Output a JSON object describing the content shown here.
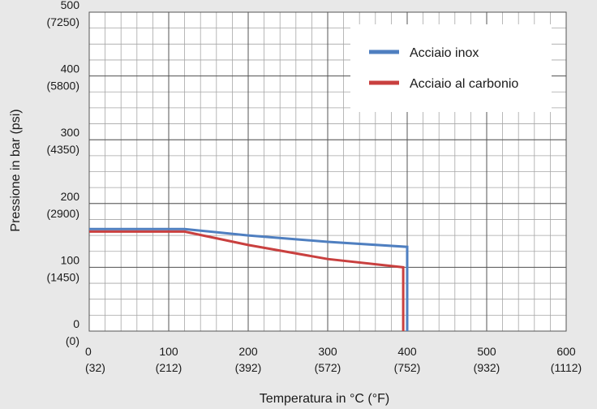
{
  "chart_data": {
    "type": "line",
    "title": "",
    "xlabel": "Temperatura in °C (°F)",
    "ylabel": "Pressione in bar (psi)",
    "xlim": [
      0,
      600
    ],
    "ylim": [
      0,
      500
    ],
    "grid": true,
    "legend_position": "top-right",
    "x_ticks": [
      {
        "value": 0,
        "label": "0",
        "sub": "(32)"
      },
      {
        "value": 100,
        "label": "100",
        "sub": "(212)"
      },
      {
        "value": 200,
        "label": "200",
        "sub": "(392)"
      },
      {
        "value": 300,
        "label": "300",
        "sub": "(572)"
      },
      {
        "value": 400,
        "label": "400",
        "sub": "(752)"
      },
      {
        "value": 500,
        "label": "500",
        "sub": "(932)"
      },
      {
        "value": 600,
        "label": "600",
        "sub": "(1112)"
      }
    ],
    "y_ticks": [
      {
        "value": 0,
        "label": "0",
        "sub": "(0)"
      },
      {
        "value": 100,
        "label": "100",
        "sub": "(1450)"
      },
      {
        "value": 200,
        "label": "200",
        "sub": "(2900)"
      },
      {
        "value": 300,
        "label": "300",
        "sub": "(4350)"
      },
      {
        "value": 400,
        "label": "400",
        "sub": "(5800)"
      },
      {
        "value": 500,
        "label": "500",
        "sub": "(7250)"
      }
    ],
    "series": [
      {
        "name": "Acciaio inox",
        "color": "#4f7fc0",
        "points": [
          [
            0,
            160
          ],
          [
            120,
            160
          ],
          [
            200,
            150
          ],
          [
            300,
            140
          ],
          [
            400,
            132
          ],
          [
            400,
            0
          ]
        ]
      },
      {
        "name": "Acciaio al carbonio",
        "color": "#c9403f",
        "points": [
          [
            0,
            156
          ],
          [
            120,
            156
          ],
          [
            200,
            135
          ],
          [
            300,
            113
          ],
          [
            395,
            100
          ],
          [
            395,
            0
          ]
        ]
      }
    ]
  }
}
